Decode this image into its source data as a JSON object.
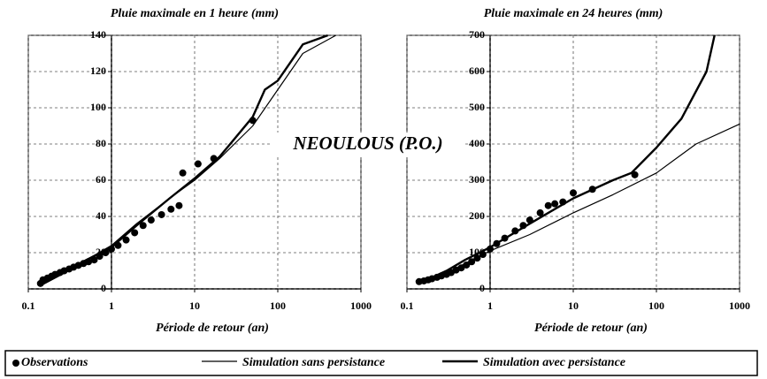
{
  "suptitle": "NEOULOUS (P.O.)",
  "chart_data": [
    {
      "type": "line",
      "title": "Pluie maximale en 1 heure (mm)",
      "xlabel": "Période de retour (an)",
      "xscale": "log",
      "xlim": [
        0.1,
        1000
      ],
      "xticks": [
        0.1,
        1,
        10,
        100,
        1000
      ],
      "ylim": [
        0,
        140
      ],
      "yticks": [
        0,
        20,
        40,
        60,
        80,
        100,
        120,
        140
      ],
      "grid": true,
      "series": [
        {
          "name": "Observations",
          "type": "scatter",
          "color": "#000000",
          "x": [
            0.14,
            0.15,
            0.17,
            0.19,
            0.21,
            0.24,
            0.27,
            0.31,
            0.35,
            0.4,
            0.46,
            0.53,
            0.62,
            0.72,
            0.85,
            1.0,
            1.2,
            1.5,
            1.9,
            2.4,
            3.0,
            4.0,
            5.2,
            6.5,
            7.2,
            11,
            17,
            50
          ],
          "values": [
            3,
            5,
            6,
            7,
            8,
            9,
            10,
            11,
            12,
            13,
            14,
            15,
            16,
            18,
            20,
            22,
            24,
            27,
            31,
            35,
            38,
            41,
            44,
            46,
            64,
            69,
            72,
            93
          ]
        },
        {
          "name": "Simulation sans persistance",
          "type": "line",
          "color": "#000000",
          "width": 1.2,
          "x": [
            0.14,
            0.3,
            0.5,
            1,
            2,
            5,
            10,
            20,
            50,
            100,
            200,
            500
          ],
          "values": [
            2,
            10,
            16,
            24,
            36,
            50,
            60,
            72,
            90,
            110,
            130,
            140
          ]
        },
        {
          "name": "Simulation avec persistance",
          "type": "line",
          "color": "#000000",
          "width": 2.4,
          "x": [
            0.14,
            0.3,
            0.5,
            1,
            2,
            5,
            10,
            20,
            50,
            70,
            100,
            200,
            400
          ],
          "values": [
            2,
            10,
            16,
            23,
            35,
            50,
            61,
            73,
            95,
            110,
            115,
            135,
            140
          ]
        }
      ]
    },
    {
      "type": "line",
      "title": "Pluie maximale en 24 heures (mm)",
      "xlabel": "Période de retour (an)",
      "xscale": "log",
      "xlim": [
        0.1,
        1000
      ],
      "xticks": [
        0.1,
        1,
        10,
        100,
        1000
      ],
      "ylim": [
        0,
        700
      ],
      "yticks": [
        0,
        100,
        200,
        300,
        400,
        500,
        600,
        700
      ],
      "grid": true,
      "series": [
        {
          "name": "Observations",
          "type": "scatter",
          "color": "#000000",
          "x": [
            0.14,
            0.16,
            0.18,
            0.2,
            0.23,
            0.26,
            0.3,
            0.34,
            0.39,
            0.45,
            0.52,
            0.6,
            0.7,
            0.82,
            1.0,
            1.2,
            1.5,
            2.0,
            2.5,
            3.0,
            4.0,
            5.0,
            6.0,
            7.5,
            10,
            17,
            55
          ],
          "values": [
            20,
            22,
            25,
            28,
            32,
            36,
            40,
            45,
            52,
            58,
            66,
            75,
            85,
            95,
            110,
            125,
            140,
            160,
            175,
            190,
            210,
            230,
            235,
            240,
            265,
            275,
            315
          ]
        },
        {
          "name": "Simulation sans persistance",
          "type": "line",
          "color": "#000000",
          "width": 1.2,
          "x": [
            0.14,
            0.3,
            0.5,
            1,
            3,
            10,
            30,
            100,
            300,
            1000
          ],
          "values": [
            15,
            45,
            70,
            105,
            150,
            210,
            260,
            320,
            400,
            455
          ]
        },
        {
          "name": "Simulation avec persistance",
          "type": "line",
          "color": "#000000",
          "width": 2.4,
          "x": [
            0.14,
            0.3,
            0.5,
            1,
            3,
            10,
            30,
            50,
            100,
            200,
            400,
            500
          ],
          "values": [
            15,
            50,
            80,
            115,
            180,
            250,
            300,
            320,
            390,
            470,
            600,
            700
          ]
        }
      ]
    }
  ]
}
